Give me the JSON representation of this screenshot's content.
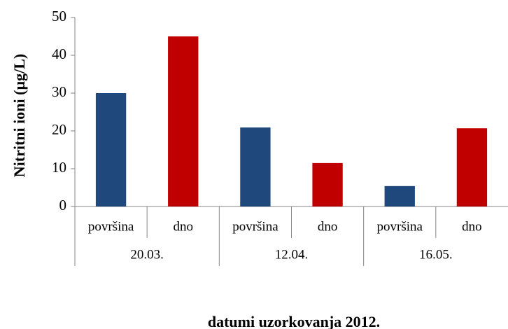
{
  "chart_data": {
    "type": "bar",
    "x_title": "datumi uzorkovanja 2012.",
    "y_title": "Nitritni ioni (µg/L)",
    "categories": [
      "površina",
      "dno",
      "površina",
      "dno",
      "površina",
      "dno"
    ],
    "groups": [
      "20.03.",
      "12.04.",
      "16.05."
    ],
    "values": [
      30,
      45,
      20.9,
      11.5,
      5.4,
      20.7
    ],
    "colors": [
      "#1f497d",
      "#c00000",
      "#1f497d",
      "#c00000",
      "#1f497d",
      "#c00000"
    ],
    "ylim": [
      0,
      50
    ],
    "yticks": [
      0,
      10,
      20,
      30,
      40,
      50
    ],
    "grid": false
  }
}
